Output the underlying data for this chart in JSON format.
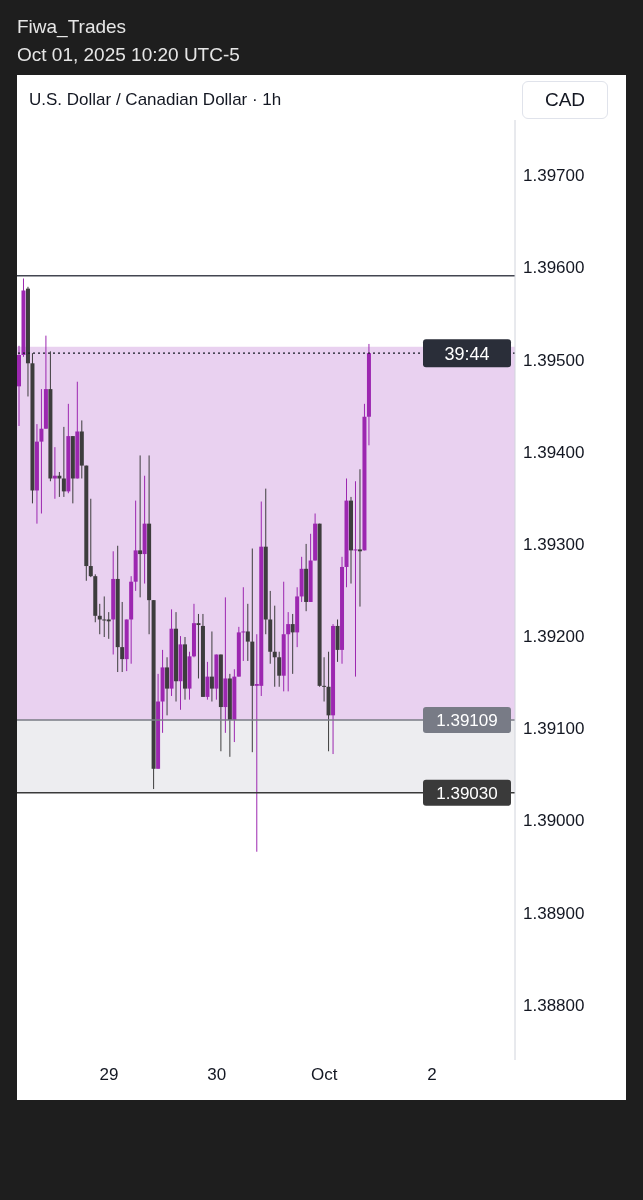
{
  "chart_data": {
    "type": "candlestick",
    "title": "U.S. Dollar / Canadian Dollar · 1h",
    "ylabel": "CAD",
    "annotations": [
      "Fiwa_Trades",
      "Oct 01, 2025 10:20 UTC-5",
      "39:44"
    ],
    "categories": [
      null,
      null,
      null,
      null,
      null,
      null,
      null,
      null,
      null,
      null,
      null,
      null,
      null,
      null,
      null,
      null,
      null,
      null,
      null,
      null,
      "29",
      null,
      null,
      null,
      null,
      null,
      null,
      null,
      null,
      null,
      null,
      null,
      null,
      null,
      null,
      null,
      null,
      null,
      null,
      null,
      null,
      null,
      null,
      null,
      "30",
      null,
      null,
      null,
      null,
      null,
      null,
      null,
      null,
      null,
      null,
      null,
      null,
      null,
      null,
      null,
      null,
      null,
      null,
      null,
      null,
      null,
      null,
      null,
      "Oct",
      null,
      null,
      null,
      null,
      null,
      null,
      null,
      null,
      null,
      null,
      null,
      null,
      null,
      null,
      null,
      null,
      null,
      null,
      null,
      null,
      null,
      null,
      null,
      "2",
      null,
      null,
      null,
      null,
      null,
      null,
      null,
      null,
      null,
      null,
      null,
      null,
      null,
      null,
      null,
      null,
      null,
      null
    ],
    "ohlc": [
      [
        1.39471,
        1.39515,
        1.39428,
        1.39505
      ],
      [
        1.39505,
        1.39588,
        1.39503,
        1.39575
      ],
      [
        1.39577,
        1.39579,
        1.3946,
        1.39496
      ],
      [
        1.39496,
        1.39507,
        1.39344,
        1.39358
      ],
      [
        1.39358,
        1.3943,
        1.39322,
        1.39411
      ],
      [
        1.39411,
        1.39468,
        1.39333,
        1.39425
      ],
      [
        1.39425,
        1.39526,
        1.39425,
        1.39468
      ],
      [
        1.39468,
        1.39509,
        1.39368,
        1.39371
      ],
      [
        1.39371,
        1.39405,
        1.39349,
        1.39374
      ],
      [
        1.39374,
        1.39378,
        1.39351,
        1.39371
      ],
      [
        1.39371,
        1.39427,
        1.39351,
        1.39357
      ],
      [
        1.39357,
        1.39452,
        1.39355,
        1.39417
      ],
      [
        1.39417,
        1.39417,
        1.39344,
        1.39371
      ],
      [
        1.39371,
        1.39476,
        1.39371,
        1.39422
      ],
      [
        1.39422,
        1.39434,
        1.39371,
        1.39385
      ],
      [
        1.39385,
        1.39385,
        1.3926,
        1.39276
      ],
      [
        1.39276,
        1.39349,
        1.39264,
        1.39265
      ],
      [
        1.39265,
        1.39267,
        1.39215,
        1.39222
      ],
      [
        1.39222,
        1.39235,
        1.39202,
        1.39218
      ],
      [
        1.39218,
        1.39243,
        1.39199,
        1.39217
      ],
      [
        1.39218,
        1.39226,
        1.39197,
        1.39216
      ],
      [
        1.39218,
        1.39292,
        1.3918,
        1.39262
      ],
      [
        1.39262,
        1.39298,
        1.39161,
        1.39188
      ],
      [
        1.39188,
        1.39237,
        1.39161,
        1.39175
      ],
      [
        1.39175,
        1.39218,
        1.39162,
        1.39218
      ],
      [
        1.39218,
        1.39265,
        1.3917,
        1.39259
      ],
      [
        1.39259,
        1.39347,
        1.39249,
        1.39293
      ],
      [
        1.39293,
        1.39396,
        1.39242,
        1.39289
      ],
      [
        1.39289,
        1.39374,
        1.39257,
        1.39322
      ],
      [
        1.39322,
        1.39396,
        1.39202,
        1.39239
      ],
      [
        1.39239,
        1.39239,
        1.39034,
        1.39056
      ],
      [
        1.39056,
        1.39159,
        1.39056,
        1.39129
      ],
      [
        1.39129,
        1.39185,
        1.39095,
        1.39166
      ],
      [
        1.39166,
        1.39177,
        1.39114,
        1.39143
      ],
      [
        1.39143,
        1.39229,
        1.39135,
        1.39208
      ],
      [
        1.39208,
        1.39226,
        1.39129,
        1.39151
      ],
      [
        1.39151,
        1.392,
        1.3912,
        1.39191
      ],
      [
        1.39191,
        1.39199,
        1.39131,
        1.39143
      ],
      [
        1.39143,
        1.39183,
        1.39131,
        1.39178
      ],
      [
        1.39178,
        1.39235,
        1.39177,
        1.39214
      ],
      [
        1.39214,
        1.39224,
        1.39154,
        1.39212
      ],
      [
        1.39211,
        1.39224,
        1.39134,
        1.39134
      ],
      [
        1.39134,
        1.39172,
        1.39131,
        1.39156
      ],
      [
        1.39156,
        1.39205,
        1.39129,
        1.39143
      ],
      [
        1.39143,
        1.3918,
        1.39131,
        1.3918
      ],
      [
        1.3918,
        1.3918,
        1.39075,
        1.39123
      ],
      [
        1.39123,
        1.39242,
        1.39095,
        1.39154
      ],
      [
        1.39154,
        1.39159,
        1.39069,
        1.39109
      ],
      [
        1.39109,
        1.39164,
        1.39085,
        1.39156
      ],
      [
        1.39156,
        1.3921,
        1.39156,
        1.39204
      ],
      [
        1.39204,
        1.39253,
        1.39173,
        1.39205
      ],
      [
        1.39205,
        1.39235,
        1.39173,
        1.39194
      ],
      [
        1.39194,
        1.39295,
        1.39074,
        1.39146
      ],
      [
        1.39146,
        1.39202,
        1.38966,
        1.39148
      ],
      [
        1.39146,
        1.39346,
        1.39135,
        1.39297
      ],
      [
        1.39297,
        1.3936,
        1.39202,
        1.39218
      ],
      [
        1.39218,
        1.39249,
        1.3917,
        1.39183
      ],
      [
        1.39183,
        1.39233,
        1.39145,
        1.39177
      ],
      [
        1.39177,
        1.39183,
        1.39145,
        1.39157
      ],
      [
        1.39157,
        1.39259,
        1.3914,
        1.39202
      ],
      [
        1.39202,
        1.39226,
        1.3914,
        1.39213
      ],
      [
        1.39213,
        1.39224,
        1.39159,
        1.39204
      ],
      [
        1.39204,
        1.39253,
        1.39188,
        1.39243
      ],
      [
        1.39243,
        1.39286,
        1.39237,
        1.39273
      ],
      [
        1.39273,
        1.393,
        1.39227,
        1.39237
      ],
      [
        1.39237,
        1.39311,
        1.39237,
        1.39282
      ],
      [
        1.39282,
        1.39333,
        1.39282,
        1.39322
      ],
      [
        1.39322,
        1.39322,
        1.39145,
        1.39146
      ],
      [
        1.39146,
        1.39177,
        1.39129,
        1.39145
      ],
      [
        1.39145,
        1.39183,
        1.39075,
        1.39114
      ],
      [
        1.39114,
        1.39213,
        1.39072,
        1.39211
      ],
      [
        1.39211,
        1.39218,
        1.39172,
        1.39185
      ],
      [
        1.39185,
        1.39286,
        1.3917,
        1.39275
      ],
      [
        1.39275,
        1.39371,
        1.39253,
        1.39347
      ],
      [
        1.39347,
        1.39351,
        1.39257,
        1.39293
      ],
      [
        1.39293,
        1.39368,
        1.39156,
        1.39294
      ],
      [
        1.39294,
        1.39381,
        1.39232,
        1.39292
      ],
      [
        1.39293,
        1.39452,
        1.39293,
        1.39438
      ],
      [
        1.39438,
        1.39517,
        1.39407,
        1.39507
      ],
      null,
      null,
      null,
      null,
      null,
      null,
      null,
      null,
      null,
      null,
      null,
      null,
      null,
      null,
      null,
      null,
      null,
      null,
      null,
      null,
      null,
      null,
      null,
      null,
      null,
      null,
      null,
      null,
      null,
      null,
      null,
      null
    ],
    "colors": [
      "#9c27b0",
      "#9c27b0",
      "#3d3d3d",
      "#3d3d3d",
      "#9c27b0",
      "#9c27b0",
      "#9c27b0",
      "#3d3d3d",
      "#9c27b0",
      "#3d3d3d",
      "#3d3d3d",
      "#9c27b0",
      "#3d3d3d",
      "#9c27b0",
      "#3d3d3d",
      "#3d3d3d",
      "#3d3d3d",
      "#3d3d3d",
      "#3d3d3d",
      "#3d3d3d",
      "#3d3d3d",
      "#9c27b0",
      "#3d3d3d",
      "#3d3d3d",
      "#9c27b0",
      "#9c27b0",
      "#9c27b0",
      "#3d3d3d",
      "#9c27b0",
      "#3d3d3d",
      "#3d3d3d",
      "#9c27b0",
      "#9c27b0",
      "#3d3d3d",
      "#9c27b0",
      "#3d3d3d",
      "#9c27b0",
      "#3d3d3d",
      "#9c27b0",
      "#9c27b0",
      "#3d3d3d",
      "#3d3d3d",
      "#9c27b0",
      "#3d3d3d",
      "#9c27b0",
      "#3d3d3d",
      "#9c27b0",
      "#3d3d3d",
      "#9c27b0",
      "#9c27b0",
      "#9c27b0",
      "#3d3d3d",
      "#3d3d3d",
      "#9c27b0",
      "#9c27b0",
      "#3d3d3d",
      "#3d3d3d",
      "#3d3d3d",
      "#3d3d3d",
      "#9c27b0",
      "#9c27b0",
      "#3d3d3d",
      "#9c27b0",
      "#9c27b0",
      "#3d3d3d",
      "#9c27b0",
      "#9c27b0",
      "#3d3d3d",
      "#3d3d3d",
      "#3d3d3d",
      "#9c27b0",
      "#3d3d3d",
      "#9c27b0",
      "#9c27b0",
      "#3d3d3d",
      "#9c27b0",
      "#3d3d3d",
      "#9c27b0",
      "#9c27b0",
      null,
      null,
      null,
      null,
      null,
      null,
      null,
      null,
      null,
      null,
      null,
      null,
      null,
      null,
      null,
      null,
      null,
      null,
      null,
      null,
      null,
      null,
      null,
      null,
      null,
      null,
      null,
      null,
      null,
      null,
      null,
      null
    ],
    "ylim": [
      1.3874,
      1.3976
    ],
    "yticks": [
      {
        "value": 1.388,
        "label": "1.38800"
      },
      {
        "value": 1.389,
        "label": "1.38900"
      },
      {
        "value": 1.39,
        "label": "1.39000"
      },
      {
        "value": 1.391,
        "label": "1.39100"
      },
      {
        "value": 1.392,
        "label": "1.39200"
      },
      {
        "value": 1.393,
        "label": "1.39300"
      },
      {
        "value": 1.394,
        "label": "1.39400"
      },
      {
        "value": 1.395,
        "label": "1.39500"
      },
      {
        "value": 1.396,
        "label": "1.39600"
      },
      {
        "value": 1.397,
        "label": "1.39700"
      }
    ],
    "ref_lines": [
      {
        "axis": "y",
        "value": 1.39591,
        "label": null,
        "color": "#434651",
        "line_style": "solid"
      },
      {
        "axis": "y",
        "value": 1.39507,
        "label": null,
        "color": "#131722",
        "line_style": "dotted"
      },
      {
        "axis": "y",
        "value": 1.39109,
        "label": "1.39109",
        "color": "#787b86",
        "line_style": "solid"
      },
      {
        "axis": "y",
        "value": 1.3903,
        "label": "1.39030",
        "color": "#3a3a3a",
        "line_style": "solid"
      }
    ],
    "bands": [
      {
        "axis": "y",
        "from": 1.39109,
        "to": 1.39514,
        "label": null,
        "color": "#e3c6ec"
      },
      {
        "axis": "y",
        "from": 1.3903,
        "to": 1.39109,
        "label": null,
        "color": "#e8e8ec"
      }
    ],
    "grid": false,
    "legend": false
  }
}
